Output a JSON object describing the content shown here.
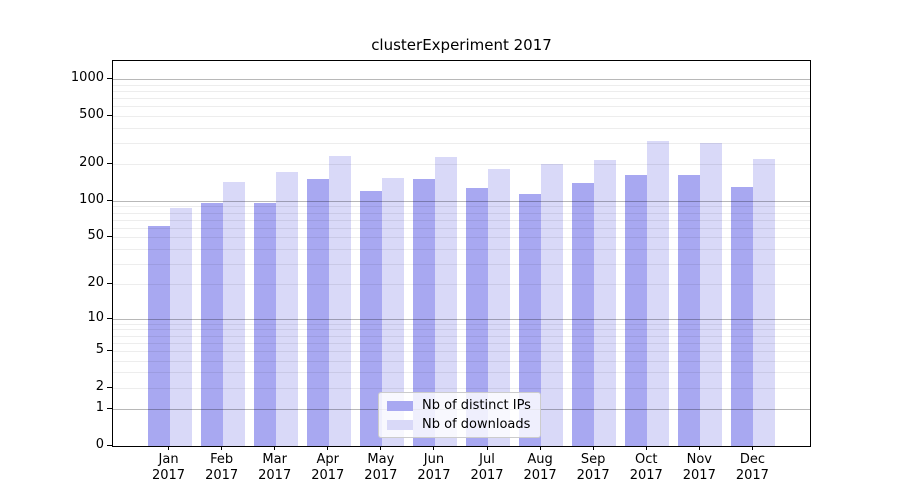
{
  "chart_data": {
    "type": "bar",
    "title": "clusterExperiment 2017",
    "xlabel": "",
    "ylabel": "",
    "y_scale": "log1p",
    "ylim": [
      0,
      1400
    ],
    "y_ticks": [
      0,
      1,
      2,
      5,
      10,
      20,
      50,
      100,
      200,
      500,
      1000
    ],
    "grid": true,
    "legend_position": "lower center",
    "categories": [
      {
        "month": "Jan",
        "year": "2017"
      },
      {
        "month": "Feb",
        "year": "2017"
      },
      {
        "month": "Mar",
        "year": "2017"
      },
      {
        "month": "Apr",
        "year": "2017"
      },
      {
        "month": "May",
        "year": "2017"
      },
      {
        "month": "Jun",
        "year": "2017"
      },
      {
        "month": "Jul",
        "year": "2017"
      },
      {
        "month": "Aug",
        "year": "2017"
      },
      {
        "month": "Sep",
        "year": "2017"
      },
      {
        "month": "Oct",
        "year": "2017"
      },
      {
        "month": "Nov",
        "year": "2017"
      },
      {
        "month": "Dec",
        "year": "2017"
      }
    ],
    "series": [
      {
        "name": "Nb of distinct IPs",
        "color": "#a8a8f1",
        "values": [
          62,
          96,
          96,
          152,
          120,
          152,
          127,
          114,
          141,
          163,
          163,
          130
        ]
      },
      {
        "name": "Nb of downloads",
        "color": "#d9d9f8",
        "values": [
          88,
          144,
          172,
          235,
          155,
          230,
          182,
          200,
          217,
          311,
          300,
          219
        ]
      }
    ]
  }
}
